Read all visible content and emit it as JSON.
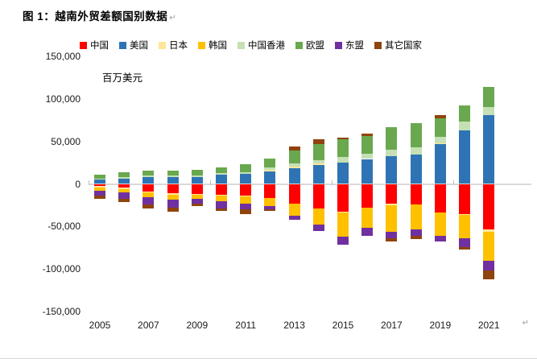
{
  "page": {
    "title": "图 1：越南外贸差额国别数据",
    "paragraph_mark": "↵"
  },
  "chart_data": {
    "type": "bar",
    "stacked": true,
    "title": "图 1：越南外贸差额国别数据",
    "unit_label": "百万美元",
    "legend_position": "top",
    "grid": false,
    "categories": [
      "2005",
      "2006",
      "2007",
      "2008",
      "2009",
      "2010",
      "2011",
      "2012",
      "2013",
      "2014",
      "2015",
      "2016",
      "2017",
      "2018",
      "2019",
      "2020",
      "2021"
    ],
    "x_tick_labels": [
      "2005",
      "2007",
      "2009",
      "2011",
      "2013",
      "2015",
      "2017",
      "2019",
      "2021"
    ],
    "ylim": [
      -150000,
      150000
    ],
    "y_ticks": [
      {
        "label": "150,000",
        "value": 150000
      },
      {
        "label": "100,000",
        "value": 100000
      },
      {
        "label": "50,000",
        "value": 50000
      },
      {
        "label": "0",
        "value": 0
      },
      {
        "label": "-50,000",
        "value": -50000
      },
      {
        "label": "-100,000",
        "value": -100000
      },
      {
        "label": "-150,000",
        "value": -150000
      }
    ],
    "series": [
      {
        "name": "中国",
        "color": "#FF0000",
        "values": [
          -2800,
          -4400,
          -9100,
          -11100,
          -11500,
          -12700,
          -13500,
          -16300,
          -23700,
          -28900,
          -32400,
          -28000,
          -22800,
          -24200,
          -34000,
          -35300,
          -54000
        ]
      },
      {
        "name": "美国",
        "color": "#2E74B5",
        "values": [
          5000,
          6300,
          8000,
          8000,
          8300,
          10500,
          11500,
          14800,
          18600,
          22300,
          25500,
          29400,
          32400,
          34700,
          46900,
          62700,
          81000
        ]
      },
      {
        "name": "日本",
        "color": "#FFE699",
        "values": [
          -1900,
          -1900,
          -1200,
          -1500,
          -1100,
          -1300,
          -800,
          1500,
          2000,
          1800,
          -1600,
          -400,
          -1900,
          -200,
          700,
          -1100,
          -2500
        ]
      },
      {
        "name": "韩国",
        "color": "#FFC000",
        "values": [
          -3800,
          -3900,
          -4900,
          -6300,
          -5000,
          -6700,
          -8500,
          -10100,
          -14100,
          -19000,
          -28600,
          -23500,
          -31800,
          -29300,
          -27300,
          -27600,
          -34000
        ]
      },
      {
        "name": "中国香港",
        "color": "#C5E0B4",
        "values": [
          1500,
          1700,
          2000,
          1500,
          1500,
          1900,
          2200,
          3000,
          3500,
          4100,
          6300,
          6300,
          7500,
          8100,
          7500,
          11300,
          10000
        ]
      },
      {
        "name": "欧盟",
        "color": "#6AA84F",
        "values": [
          4400,
          5600,
          6000,
          6500,
          6600,
          7500,
          9400,
          11000,
          15700,
          19000,
          20400,
          20700,
          27000,
          28700,
          22000,
          18800,
          23500
        ]
      },
      {
        "name": "东盟",
        "color": "#7030A0",
        "values": [
          -5300,
          -6900,
          -8700,
          -9400,
          -5300,
          -8100,
          -7500,
          -3500,
          -4700,
          -8000,
          -9100,
          -9400,
          -7800,
          -7800,
          -6900,
          -10300,
          -11900
        ]
      },
      {
        "name": "其它国家",
        "color": "#8F440D",
        "values": [
          -4000,
          -3800,
          -5300,
          -4000,
          -3100,
          -3100,
          -5000,
          -2200,
          4700,
          5000,
          2200,
          3100,
          -3100,
          -3100,
          4100,
          -3100,
          -10000
        ]
      }
    ]
  }
}
